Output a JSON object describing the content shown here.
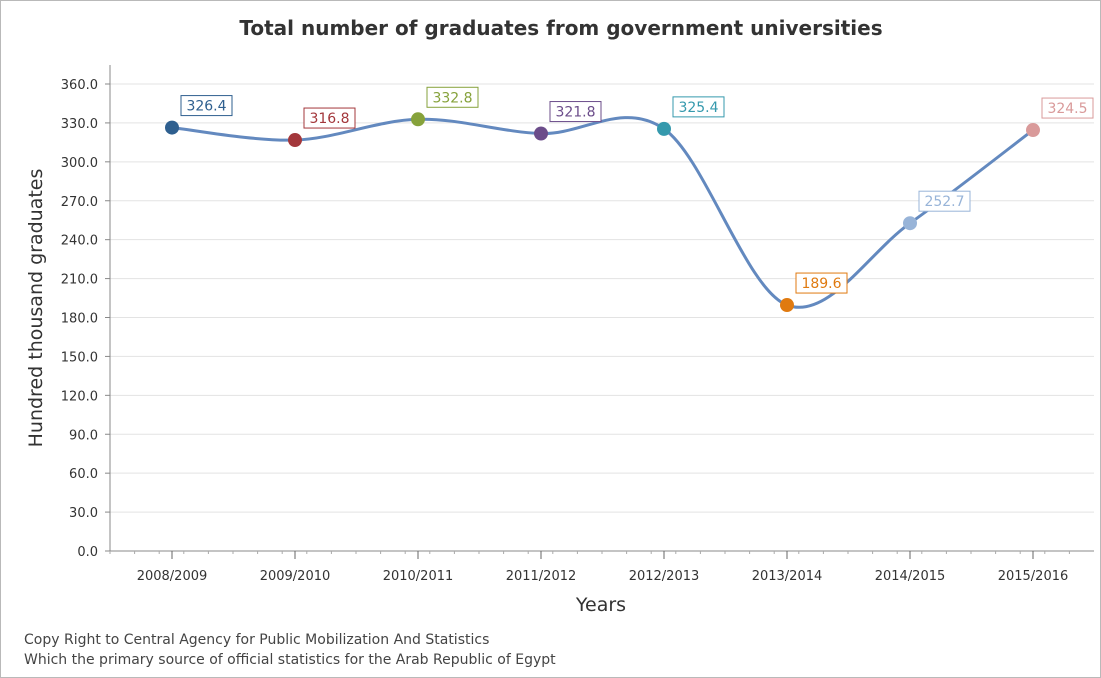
{
  "chart_data": {
    "type": "line",
    "title": "Total number of graduates from government universities",
    "xlabel": "Years",
    "ylabel": "Hundred thousand graduates",
    "categories": [
      "2008/2009",
      "2009/2010",
      "2010/2011",
      "2011/2012",
      "2012/2013",
      "2013/2014",
      "2014/2015",
      "2015/2016"
    ],
    "values": [
      326.4,
      316.8,
      332.8,
      321.8,
      325.4,
      189.6,
      252.7,
      324.5
    ],
    "data_labels": [
      "326.4",
      "316.8",
      "332.8",
      "321.8",
      "325.4",
      "189.6",
      "252.7",
      "324.5"
    ],
    "point_colors": [
      "#2e5f8f",
      "#a3373b",
      "#86a23b",
      "#6b4c8a",
      "#3599ad",
      "#e07a10",
      "#98b4d8",
      "#d99a9a"
    ],
    "line_color": "#6389bf",
    "ylim": [
      0,
      360
    ],
    "y_ticks": [
      "0.0",
      "30.0",
      "60.0",
      "90.0",
      "120.0",
      "150.0",
      "180.0",
      "210.0",
      "240.0",
      "270.0",
      "300.0",
      "330.0",
      "360.0"
    ],
    "grid": true,
    "legend": "none"
  },
  "footer": {
    "line1": "Copy Right to Central Agency for Public Mobilization And Statistics",
    "line2": "Which the primary source of official statistics for the Arab Republic of Egypt"
  }
}
